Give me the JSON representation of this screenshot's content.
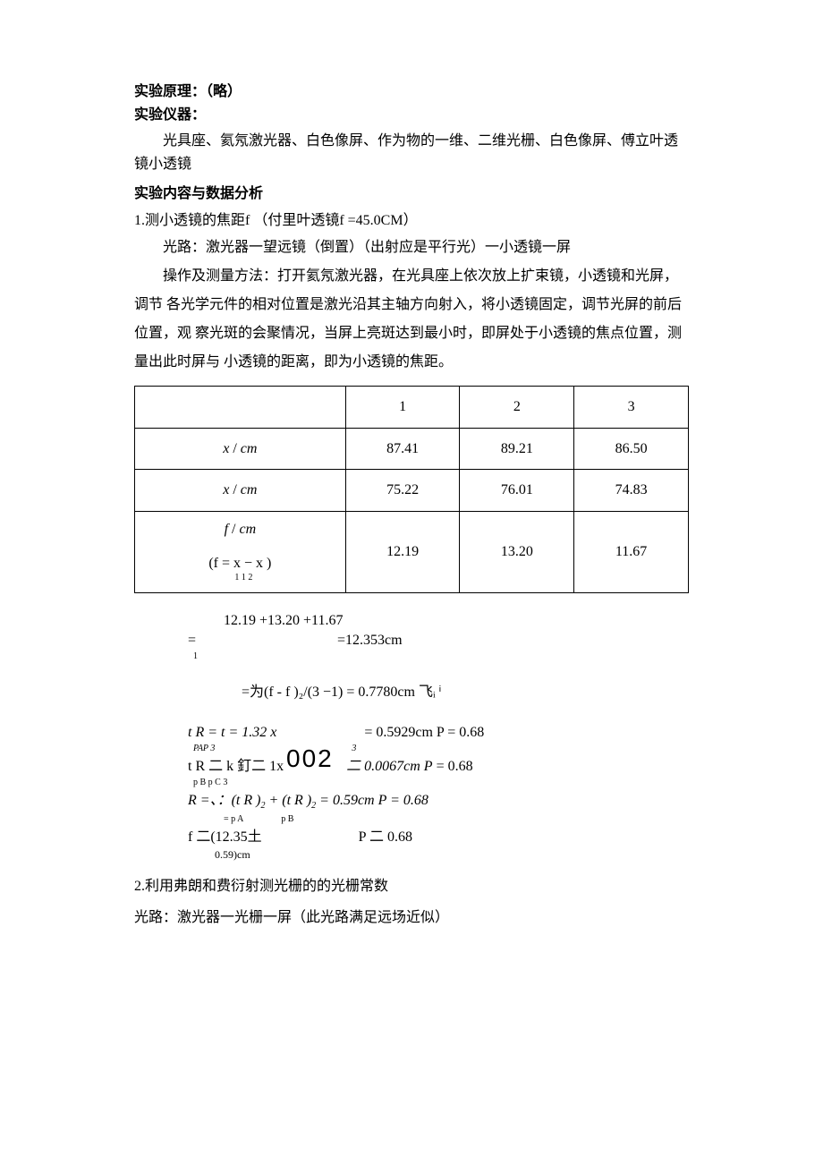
{
  "headings": {
    "principle": "实验原理：",
    "principle_note": "（略）",
    "instruments": "实验仪器：",
    "content_analysis": "实验内容与数据分析"
  },
  "instruments_text": "光具座、氦氖激光器、白色像屏、作为物的一维、二维光栅、白色像屏、傅立叶透镜小透镜",
  "item1": {
    "title": "1.测小透镜的焦距f （付里叶透镜f =45.0CM）",
    "light_path": "光路：激光器一望远镜（倒置）（出射应是平行光）一小透镜一屏",
    "method": "操作及测量方法：打开氦氖激光器，在光具座上依次放上扩束镜，小透镜和光屏，调节 各光学元件的相对位置是激光沿其主轴方向射入，将小透镜固定，调节光屏的前后位置，观 察光斑的会聚情况，当屏上亮斑达到最小时，即屏处于小透镜的焦点位置，测量出此时屏与 小透镜的距离，即为小透镜的焦距。"
  },
  "table": {
    "header": [
      "",
      "1",
      "2",
      "3"
    ],
    "rows": [
      {
        "label_html": "<span class='italic'>x</span> / <span class='italic'>cm</span>",
        "c1": "87.41",
        "c2": "89.21",
        "c3": "86.50"
      },
      {
        "label_html": "<span class='italic'>x</span> / <span class='italic'>cm</span>",
        "c1": "75.22",
        "c2": "76.01",
        "c3": "74.83"
      },
      {
        "label_html": "<div class='multi-row'><span class='italic'>f</span> / <span class='italic'>cm</span><br><br>(f =&nbsp;x&nbsp;−&nbsp;x )<span class='sub-line' style='text-align:center;margin-left:8px'>1 1 2</span></div>",
        "c1": "12.19",
        "c2": "13.20",
        "c3": "11.67"
      }
    ]
  },
  "formulas": {
    "f_mean_top": "12.19 +13.20 +11.67",
    "f_mean_eq": "=",
    "f_mean_result": "=12.353cm",
    "f_mean_sub": "1",
    "sigma_line": "=为(f - f )₂/(3 −1) =  0.7780cm  飞ᵢ ⁱ",
    "tR_line1": "t R = t = 1.32 x",
    "tR_line1_right": "= 0.5929cm P =  0.68",
    "tR_line1_sub": "PAP 3",
    "tR_line1_sub_right": "3",
    "big002": "002",
    "tR_line2_left": "t R 二 k 釘二 1x",
    "tR_line2_right": "二 0.0067cm P = 0.68",
    "tR_line2_sub": "p B p C 3",
    "R_line": "R =、：(t R )₂ +  (t R )₂ =  0.59cm P = 0.68",
    "R_line_sub": "= p A                 p B",
    "f_final_left": "f 二(12.35土",
    "f_final_right": "P 二 0.68",
    "f_final_sub": "0.59)cm"
  },
  "item2": {
    "title": "2.利用弗朗和费衍射测光栅的的光栅常数",
    "light_path": "光路：激光器一光栅一屏（此光路满足远场近似）"
  }
}
